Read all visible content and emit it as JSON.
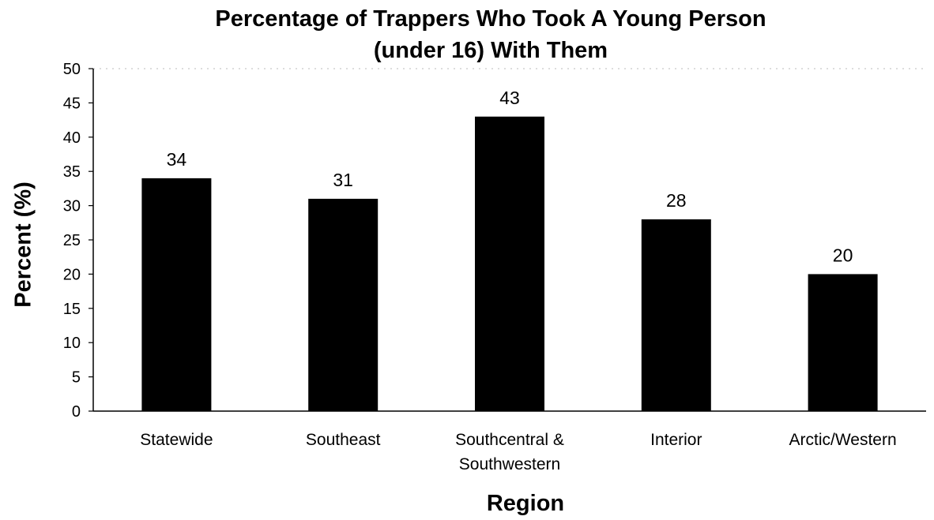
{
  "chart_data": {
    "type": "bar",
    "title": [
      "Percentage of Trappers Who Took A Young Person",
      "(under 16) With Them"
    ],
    "xlabel": "Region",
    "ylabel": "Percent (%)",
    "categories": [
      [
        "Statewide"
      ],
      [
        "Southeast"
      ],
      [
        "Southcentral &",
        "Southwestern"
      ],
      [
        "Interior"
      ],
      [
        "Arctic/Western"
      ]
    ],
    "values": [
      34,
      31,
      43,
      28,
      20
    ],
    "data_labels": [
      "34",
      "31",
      "43",
      "28",
      "20"
    ],
    "ylim": [
      0,
      50
    ],
    "yticks": [
      0,
      5,
      10,
      15,
      20,
      25,
      30,
      35,
      40,
      45,
      50
    ],
    "grid": false,
    "bar_color": "#000000"
  }
}
